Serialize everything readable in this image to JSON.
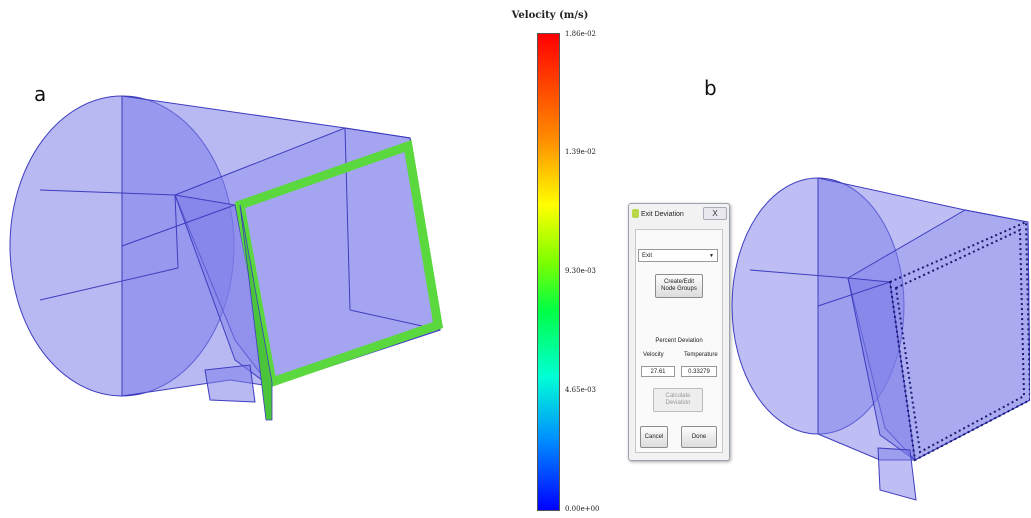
{
  "panels": {
    "a": "a",
    "b": "b"
  },
  "colorbar": {
    "title": "Velocity (m/s)",
    "ticks": [
      "1.86e-02",
      "1.39e-02",
      "9.30e-03",
      "4.65e-03",
      "0.00e+00"
    ]
  },
  "dialog": {
    "title": "Exit Deviation",
    "close_label": "X",
    "select_value": "Exit",
    "create_button": "Create/Edit Node Groups",
    "section_label": "Percent Deviation",
    "col_velocity": "Velocity",
    "col_temperature": "Temperature",
    "velocity_value": "27.61",
    "temperature_value": "0.33279",
    "calculate_button": "Calculate Deviation",
    "cancel_button": "Cancel",
    "done_button": "Done"
  },
  "colors": {
    "duct_fill": "#7d7dea",
    "duct_edge": "#3d3dbf",
    "frame_green": "#5ad83e"
  }
}
